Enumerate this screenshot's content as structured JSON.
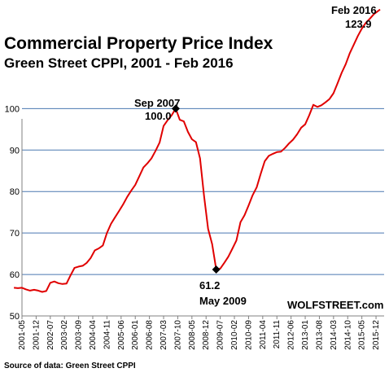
{
  "chart_data": {
    "type": "line",
    "title": "Commercial Property Price Index",
    "subtitle": "Green Street CPPI, 2001 - Feb 2016",
    "source": "Source of data: Green Street CPPI",
    "brand": "WOLFSTREET.com",
    "ylim": [
      50,
      125
    ],
    "yticks": [
      50,
      60,
      70,
      80,
      90,
      100
    ],
    "grid": true,
    "line_color": "#e00000",
    "x_tick_labels": [
      "2001-05",
      "2001-12",
      "2002-07",
      "2003-02",
      "2003-09",
      "2004-04",
      "2004-11",
      "2005-06",
      "2006-01",
      "2006-08",
      "2007-03",
      "2007-10",
      "2008-05",
      "2008-12",
      "2009-07",
      "2010-02",
      "2010-09",
      "2011-04",
      "2011-11",
      "2012-06",
      "2013-01",
      "2013-08",
      "2014-03",
      "2014-10",
      "2015-05",
      "2015-12"
    ],
    "annotations": [
      {
        "date": "Sep 2007",
        "value": "100.0"
      },
      {
        "date": "May 2009",
        "value": "61.2"
      },
      {
        "date": "Feb 2016",
        "value": "123.9"
      }
    ],
    "series": [
      {
        "values": [
          [
            "2001-01",
            56.8
          ],
          [
            "2001-03",
            56.7
          ],
          [
            "2001-05",
            56.8
          ],
          [
            "2001-07",
            56.4
          ],
          [
            "2001-09",
            56.1
          ],
          [
            "2001-11",
            56.3
          ],
          [
            "2002-01",
            56.1
          ],
          [
            "2002-03",
            55.8
          ],
          [
            "2002-05",
            56.0
          ],
          [
            "2002-07",
            58.0
          ],
          [
            "2002-09",
            58.3
          ],
          [
            "2002-11",
            57.9
          ],
          [
            "2003-01",
            57.7
          ],
          [
            "2003-03",
            57.8
          ],
          [
            "2003-05",
            59.8
          ],
          [
            "2003-07",
            61.6
          ],
          [
            "2003-09",
            61.9
          ],
          [
            "2003-11",
            62.1
          ],
          [
            "2004-01",
            62.8
          ],
          [
            "2004-03",
            64.0
          ],
          [
            "2004-05",
            65.8
          ],
          [
            "2004-07",
            66.3
          ],
          [
            "2004-09",
            67.0
          ],
          [
            "2004-11",
            70.0
          ],
          [
            "2005-01",
            72.2
          ],
          [
            "2005-03",
            73.8
          ],
          [
            "2005-05",
            75.3
          ],
          [
            "2005-07",
            76.9
          ],
          [
            "2005-09",
            78.7
          ],
          [
            "2005-11",
            80.2
          ],
          [
            "2006-01",
            81.6
          ],
          [
            "2006-03",
            83.7
          ],
          [
            "2006-05",
            85.8
          ],
          [
            "2006-07",
            86.8
          ],
          [
            "2006-09",
            88.0
          ],
          [
            "2006-11",
            89.8
          ],
          [
            "2007-01",
            91.8
          ],
          [
            "2007-03",
            95.8
          ],
          [
            "2007-05",
            97.2
          ],
          [
            "2007-07",
            98.4
          ],
          [
            "2007-09",
            100.0
          ],
          [
            "2007-11",
            97.3
          ],
          [
            "2008-01",
            96.9
          ],
          [
            "2008-03",
            94.4
          ],
          [
            "2008-05",
            92.6
          ],
          [
            "2008-07",
            91.9
          ],
          [
            "2008-09",
            88.0
          ],
          [
            "2008-11",
            79.0
          ],
          [
            "2009-01",
            71.0
          ],
          [
            "2009-03",
            67.3
          ],
          [
            "2009-05",
            61.2
          ],
          [
            "2009-07",
            61.4
          ],
          [
            "2009-09",
            62.8
          ],
          [
            "2009-11",
            64.3
          ],
          [
            "2010-01",
            66.2
          ],
          [
            "2010-03",
            68.2
          ],
          [
            "2010-05",
            72.6
          ],
          [
            "2010-07",
            74.3
          ],
          [
            "2010-09",
            76.6
          ],
          [
            "2010-11",
            79.1
          ],
          [
            "2011-01",
            81.0
          ],
          [
            "2011-03",
            84.3
          ],
          [
            "2011-05",
            87.3
          ],
          [
            "2011-07",
            88.6
          ],
          [
            "2011-09",
            89.1
          ],
          [
            "2011-11",
            89.5
          ],
          [
            "2012-01",
            89.6
          ],
          [
            "2012-03",
            90.5
          ],
          [
            "2012-05",
            91.6
          ],
          [
            "2012-07",
            92.5
          ],
          [
            "2012-09",
            93.8
          ],
          [
            "2012-11",
            95.4
          ],
          [
            "2013-01",
            96.2
          ],
          [
            "2013-03",
            98.4
          ],
          [
            "2013-05",
            100.9
          ],
          [
            "2013-07",
            100.4
          ],
          [
            "2013-09",
            100.8
          ],
          [
            "2013-11",
            101.5
          ],
          [
            "2014-01",
            102.3
          ],
          [
            "2014-03",
            103.7
          ],
          [
            "2014-05",
            106.1
          ],
          [
            "2014-07",
            108.6
          ],
          [
            "2014-09",
            110.7
          ],
          [
            "2014-11",
            113.3
          ],
          [
            "2015-01",
            115.4
          ],
          [
            "2015-03",
            117.5
          ],
          [
            "2015-05",
            119.3
          ],
          [
            "2015-07",
            120.7
          ],
          [
            "2015-09",
            121.7
          ],
          [
            "2015-11",
            122.8
          ],
          [
            "2016-01",
            123.5
          ],
          [
            "2016-02",
            123.9
          ]
        ]
      }
    ]
  }
}
